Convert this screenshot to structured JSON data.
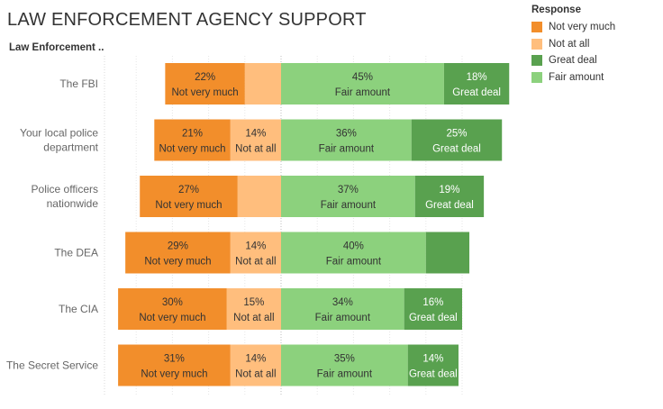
{
  "title": "LAW ENFORCEMENT AGENCY SUPPORT",
  "column_header": "Law Enforcement ..",
  "legend": {
    "title": "Response",
    "items": [
      {
        "label": "Not very much",
        "color": "#f28e2b"
      },
      {
        "label": "Not at all",
        "color": "#ffbe7d"
      },
      {
        "label": "Great deal",
        "color": "#59a14f"
      },
      {
        "label": "Fair amount",
        "color": "#8cd17d"
      }
    ]
  },
  "chart_data": {
    "type": "bar",
    "subtype": "diverging-stacked-horizontal",
    "title": "LAW ENFORCEMENT AGENCY SUPPORT",
    "unit": "percent",
    "legend_position": "top-right",
    "categories": [
      [
        "The FBI"
      ],
      [
        "Your local police",
        "department"
      ],
      [
        "Police officers",
        "nationwide"
      ],
      [
        "The DEA"
      ],
      [
        "The CIA"
      ],
      [
        "The Secret Service"
      ]
    ],
    "series": [
      {
        "name": "Not very much",
        "color": "#f28e2b",
        "side": "negative",
        "values": [
          22,
          21,
          27,
          29,
          30,
          31
        ],
        "labels": [
          "22%",
          "21%",
          "27%",
          "29%",
          "30%",
          "31%"
        ]
      },
      {
        "name": "Not at all",
        "color": "#ffbe7d",
        "side": "negative",
        "values": [
          10,
          14,
          12,
          14,
          15,
          14
        ],
        "labels": [
          "",
          "14%",
          "",
          "14%",
          "15%",
          "14%"
        ]
      },
      {
        "name": "Fair amount",
        "color": "#8cd17d",
        "side": "positive",
        "values": [
          45,
          36,
          37,
          40,
          34,
          35
        ],
        "labels": [
          "45%",
          "36%",
          "37%",
          "40%",
          "34%",
          "35%"
        ]
      },
      {
        "name": "Great deal",
        "color": "#59a14f",
        "side": "positive",
        "values": [
          18,
          25,
          19,
          12,
          16,
          14
        ],
        "labels": [
          "18%",
          "25%",
          "19%",
          "",
          "16%",
          "14%"
        ]
      }
    ],
    "x_range": [
      -45,
      60
    ],
    "grid": true
  }
}
